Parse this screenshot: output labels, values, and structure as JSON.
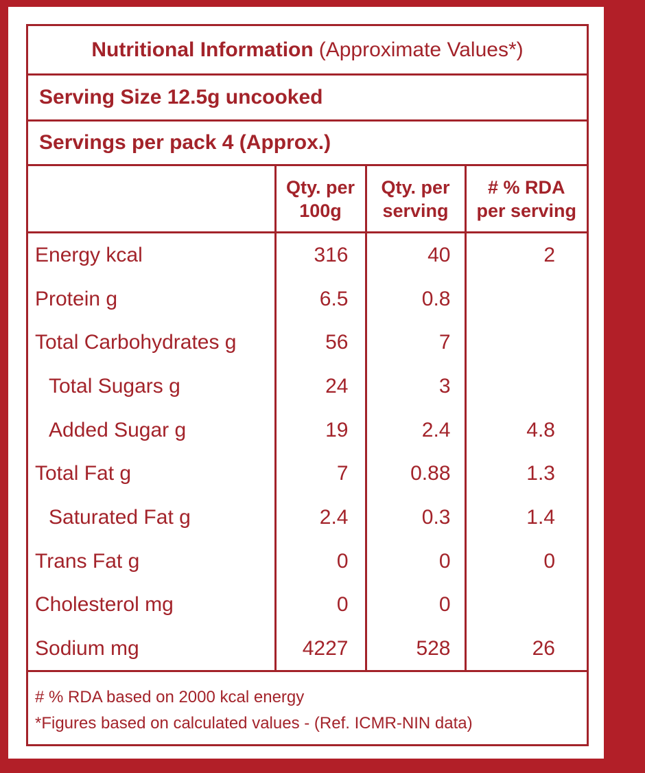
{
  "label": {
    "title": {
      "bold": "Nutritional Information",
      "normal": "(Approximate Values*)"
    },
    "serving_size": "Serving Size 12.5g uncooked",
    "servings_per_pack": "Servings per pack 4 (Approx.)",
    "table": {
      "header": [
        [
          "Qty. per",
          "100g"
        ],
        [
          "Qty. per",
          "serving"
        ],
        [
          "# % RDA",
          "per serving"
        ]
      ],
      "rows": [
        [
          "Energy kcal",
          "316",
          "40",
          "2"
        ],
        [
          "Protein g",
          "6.5",
          "0.8",
          null
        ],
        [
          "Total Carbohydrates g",
          "56",
          "7",
          null
        ],
        [
          "Total Sugars g",
          "24",
          "3",
          null
        ],
        [
          "Added Sugar g",
          "19",
          "2.4",
          "4.8"
        ],
        [
          "Total Fat g",
          "7",
          "0.88",
          "1.3"
        ],
        [
          "Saturated Fat g",
          "2.4",
          "0.3",
          "1.4"
        ],
        [
          "Trans Fat g",
          "0",
          "0",
          "0"
        ],
        [
          "Cholesterol mg",
          "0",
          "0",
          null
        ],
        [
          "Sodium mg",
          "4227",
          "528",
          "26"
        ]
      ]
    },
    "footnotes": [
      "# % RDA based on 2000 kcal energy",
      "*Figures based on calculated values - (Ref. ICMR-NIN data)"
    ]
  }
}
